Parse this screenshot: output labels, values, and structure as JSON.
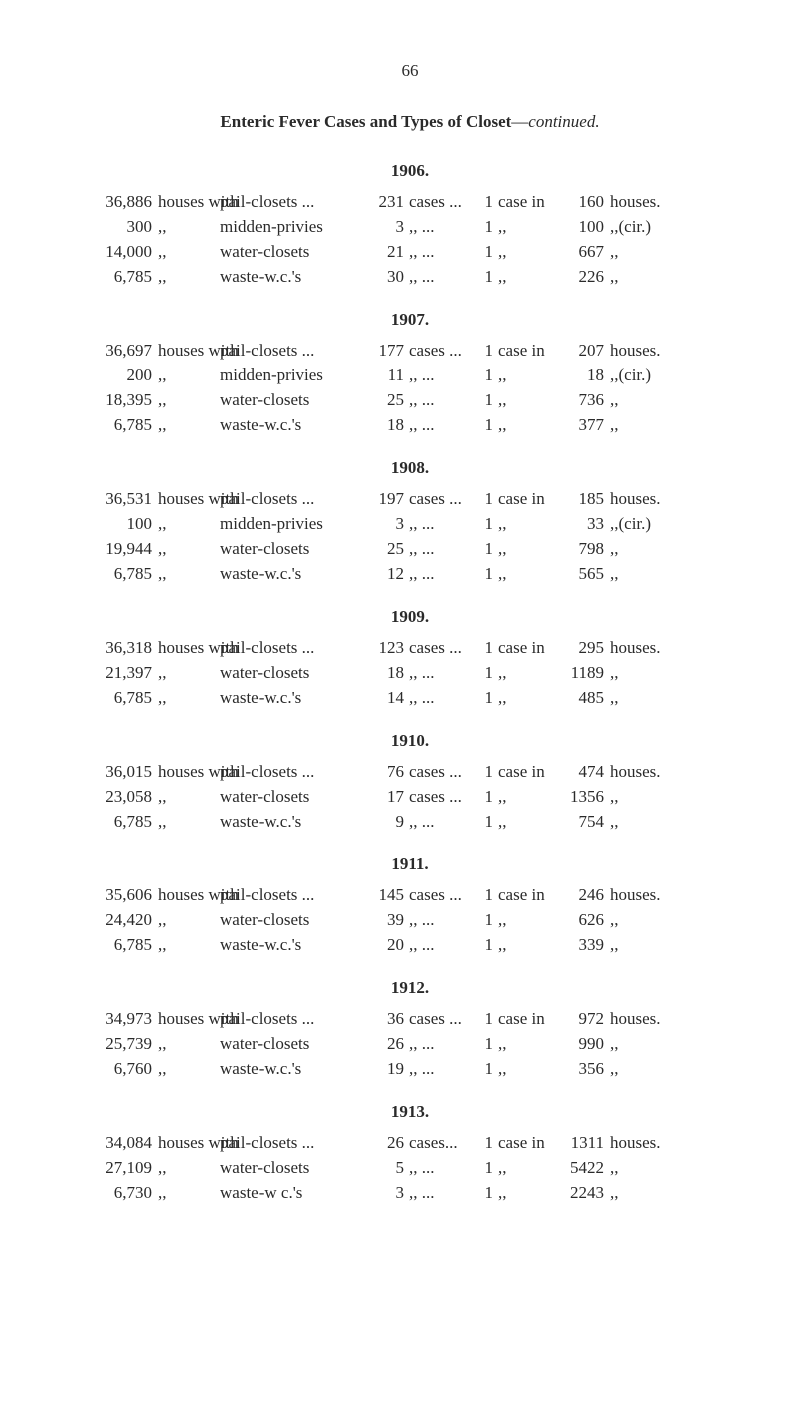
{
  "page_number": "66",
  "title_bold": "Enteric Fever Cases and Types of Closet",
  "title_dash": "—",
  "title_ital": "continued.",
  "labels": {
    "houses_with": "houses with",
    "ditto": ",,",
    "cases": "cases ...",
    "cases_ditto": ",,   ...",
    "cases_only": "cases...",
    "one": "1",
    "case_in": "case in",
    "houses_end": "houses.",
    "cir": ",,(cir.)"
  },
  "years": [
    {
      "year": "1906.",
      "rows": [
        {
          "h": "36,886",
          "t": "pail-closets ...",
          "n": "231",
          "den": "160",
          "end": "houses."
        },
        {
          "h": "300",
          "t": "midden-privies",
          "n": "3",
          "den": "100",
          "end": ",,(cir.)"
        },
        {
          "h": "14,000",
          "t": "water-closets",
          "n": "21",
          "den": "667",
          "end": ",,"
        },
        {
          "h": "6,785",
          "t": "waste-w.c.'s",
          "n": "30",
          "den": "226",
          "end": ",,"
        }
      ]
    },
    {
      "year": "1907.",
      "rows": [
        {
          "h": "36,697",
          "t": "pail-closets ...",
          "n": "177",
          "den": "207",
          "end": "houses."
        },
        {
          "h": "200",
          "t": "midden-privies",
          "n": "11",
          "den": "18",
          "end": ",,(cir.)"
        },
        {
          "h": "18,395",
          "t": "water-closets",
          "n": "25",
          "den": "736",
          "end": ",,"
        },
        {
          "h": "6,785",
          "t": "waste-w.c.'s",
          "n": "18",
          "den": "377",
          "end": ",,"
        }
      ]
    },
    {
      "year": "1908.",
      "rows": [
        {
          "h": "36,531",
          "t": "pail-closets ...",
          "n": "197",
          "den": "185",
          "end": "houses."
        },
        {
          "h": "100",
          "t": "midden-privies",
          "n": "3",
          "den": "33",
          "end": ",,(cir.)"
        },
        {
          "h": "19,944",
          "t": "water-closets",
          "n": "25",
          "den": "798",
          "end": ",,"
        },
        {
          "h": "6,785",
          "t": "waste-w.c.'s",
          "n": "12",
          "den": "565",
          "end": ",,"
        }
      ]
    },
    {
      "year": "1909.",
      "rows": [
        {
          "h": "36,318",
          "t": "pail-closets ...",
          "n": "123",
          "den": "295",
          "end": "houses."
        },
        {
          "h": "21,397",
          "t": "water-closets",
          "n": "18",
          "den": "1189",
          "end": ",,"
        },
        {
          "h": "6,785",
          "t": "waste-w.c.'s",
          "n": "14",
          "den": "485",
          "end": ",,"
        }
      ]
    },
    {
      "year": "1910.",
      "rows": [
        {
          "h": "36,015",
          "t": "pail-closets ...",
          "n": "76",
          "den": "474",
          "end": "houses."
        },
        {
          "h": "23,058",
          "t": "water-closets",
          "n": "17",
          "cases_override": "cases ...",
          "den": "1356",
          "end": ",,"
        },
        {
          "h": "6,785",
          "t": "waste-w.c.'s",
          "n": "9",
          "den": "754",
          "end": ",,"
        }
      ]
    },
    {
      "year": "1911.",
      "rows": [
        {
          "h": "35,606",
          "t": "pail-closets ...",
          "n": "145",
          "den": "246",
          "end": "houses."
        },
        {
          "h": "24,420",
          "t": "water-closets",
          "n": "39",
          "den": "626",
          "end": ",,"
        },
        {
          "h": "6,785",
          "t": "waste-w.c.'s",
          "n": "20",
          "den": "339",
          "end": ",,"
        }
      ]
    },
    {
      "year": "1912.",
      "rows": [
        {
          "h": "34,973",
          "t": "pail-closets ...",
          "n": "36",
          "den": "972",
          "end": "houses."
        },
        {
          "h": "25,739",
          "t": "water-closets",
          "n": "26",
          "den": "990",
          "end": ",,"
        },
        {
          "h": "6,760",
          "t": "waste-w.c.'s",
          "n": "19",
          "den": "356",
          "end": ",,"
        }
      ]
    },
    {
      "year": "1913.",
      "rows": [
        {
          "h": "34,084",
          "t": "pail-closets ...",
          "n": "26",
          "cases_override": "cases...",
          "den": "1311",
          "end": "houses."
        },
        {
          "h": "27,109",
          "t": "water-closets",
          "n": "5",
          "den": "5422",
          "end": ",,"
        },
        {
          "h": "6,730",
          "t": "waste-w c.'s",
          "n": "3",
          "den": "2243",
          "end": ",,"
        }
      ]
    }
  ]
}
